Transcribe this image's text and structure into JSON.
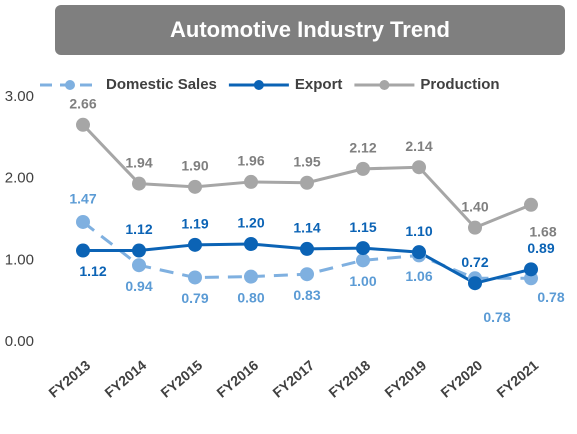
{
  "chart_data": {
    "type": "line",
    "title": "Automotive Industry Trend",
    "categories": [
      "FY2013",
      "FY2014",
      "FY2015",
      "FY2016",
      "FY2017",
      "FY2018",
      "FY2019",
      "FY2020",
      "FY2021"
    ],
    "series": [
      {
        "name": "Domestic Sales",
        "color": "#7fb0e0",
        "label_color": "#5b9bd5",
        "dashed": true,
        "values": [
          1.47,
          0.94,
          0.79,
          0.8,
          0.83,
          1.0,
          1.06,
          0.78,
          0.78
        ],
        "value_labels": [
          "1.47",
          "0.94",
          "0.79",
          "0.80",
          "0.83",
          "1.00",
          "1.06",
          "0.78",
          "0.78"
        ]
      },
      {
        "name": "Export",
        "color": "#0b63b5",
        "label_color": "#0b63b5",
        "dashed": false,
        "values": [
          1.12,
          1.12,
          1.19,
          1.2,
          1.14,
          1.15,
          1.1,
          0.72,
          0.89
        ],
        "value_labels": [
          "1.12",
          "1.12",
          "1.19",
          "1.20",
          "1.14",
          "1.15",
          "1.10",
          "0.72",
          "0.89"
        ]
      },
      {
        "name": "Production",
        "color": "#a6a6a6",
        "label_color": "#7f7f7f",
        "dashed": false,
        "values": [
          2.66,
          1.94,
          1.9,
          1.96,
          1.95,
          2.12,
          2.14,
          1.4,
          1.68
        ],
        "value_labels": [
          "2.66",
          "1.94",
          "1.90",
          "1.96",
          "1.95",
          "2.12",
          "2.14",
          "1.40",
          "1.68"
        ]
      }
    ],
    "ylim": [
      0,
      3
    ],
    "yticks": [
      {
        "value": 0,
        "label": "0.00"
      },
      {
        "value": 1,
        "label": "1.00"
      },
      {
        "value": 2,
        "label": "2.00"
      },
      {
        "value": 3,
        "label": "3.00"
      }
    ],
    "grid": false
  }
}
